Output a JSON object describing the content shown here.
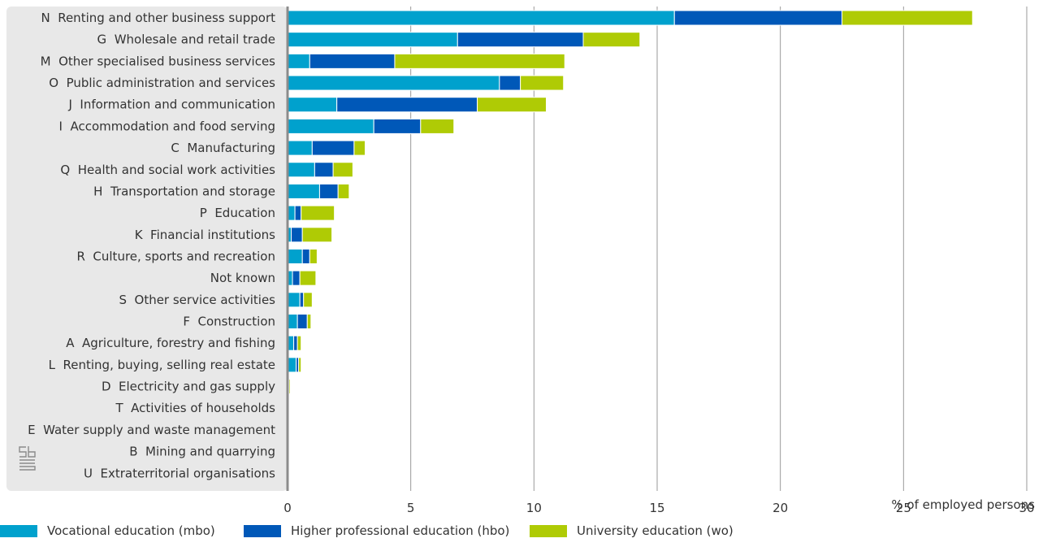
{
  "chart_data": {
    "type": "bar",
    "orientation": "horizontal",
    "stacked": true,
    "xlabel": "% of employed persons",
    "xlim": [
      0,
      30
    ],
    "xticks": [
      0,
      5,
      10,
      15,
      20,
      25,
      30
    ],
    "grid": true,
    "legend_position": "bottom-left",
    "categories": [
      "N  Renting and other business support",
      "G  Wholesale and retail trade",
      "M  Other specialised business services",
      "O  Public administration and services",
      "J  Information and communication",
      "I  Accommodation and food serving",
      "C  Manufacturing",
      "Q  Health and social work activities",
      "H  Transportation and storage",
      "P  Education",
      "K  Financial institutions",
      "R  Culture, sports and recreation",
      "Not known",
      "S  Other service activities",
      "F  Construction",
      "A  Agriculture, forestry and fishing",
      "L  Renting, buying, selling real estate",
      "D  Electricity and gas supply",
      "T  Activities of households",
      "E  Water supply and waste management",
      "B  Mining and quarrying",
      "U  Extraterritorial organisations"
    ],
    "series": [
      {
        "name": "Vocational education (mbo)",
        "color": "#00a1cd",
        "values": [
          15.7,
          6.9,
          0.9,
          8.6,
          2.0,
          3.5,
          1.0,
          1.1,
          1.3,
          0.3,
          0.15,
          0.6,
          0.2,
          0.5,
          0.4,
          0.25,
          0.35,
          0.02,
          0,
          0,
          0,
          0
        ]
      },
      {
        "name": "Higher professional education (hbo)",
        "color": "#0058b8",
        "values": [
          6.8,
          5.1,
          3.45,
          0.85,
          5.7,
          1.9,
          1.7,
          0.75,
          0.75,
          0.25,
          0.45,
          0.3,
          0.3,
          0.15,
          0.4,
          0.15,
          0.1,
          0.03,
          0,
          0,
          0,
          0
        ]
      },
      {
        "name": "University education (wo)",
        "color": "#afcb05",
        "values": [
          5.3,
          2.3,
          6.9,
          1.75,
          2.8,
          1.35,
          0.45,
          0.8,
          0.45,
          1.35,
          1.2,
          0.3,
          0.65,
          0.35,
          0.15,
          0.15,
          0.1,
          0.05,
          0,
          0,
          0,
          0
        ]
      }
    ]
  }
}
